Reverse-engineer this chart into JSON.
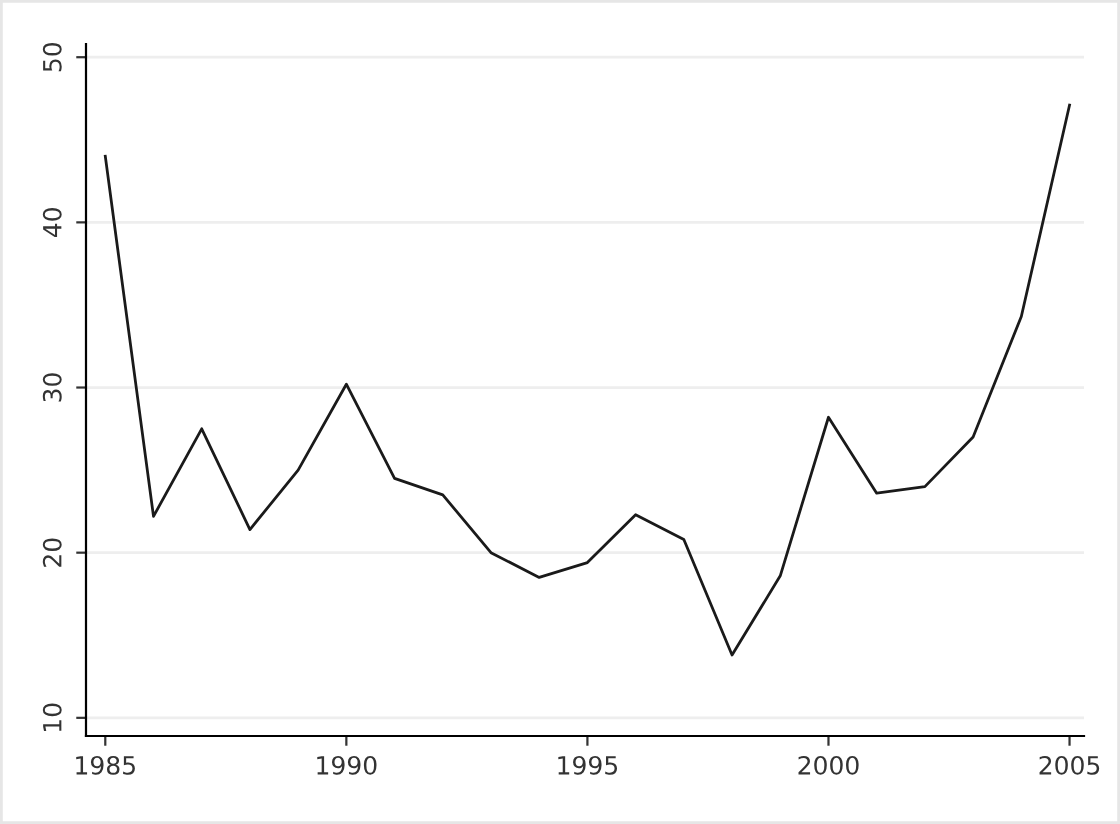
{
  "chart_data": {
    "type": "line",
    "x": [
      1985,
      1986,
      1987,
      1988,
      1989,
      1990,
      1991,
      1992,
      1993,
      1994,
      1995,
      1996,
      1997,
      1998,
      1999,
      2000,
      2001,
      2002,
      2003,
      2004,
      2005
    ],
    "series": [
      {
        "color": "#1a1a1a",
        "values": [
          44.0,
          22.2,
          27.5,
          21.4,
          25.0,
          30.2,
          24.5,
          23.5,
          20.0,
          18.5,
          19.4,
          22.3,
          20.8,
          13.8,
          18.6,
          28.2,
          23.6,
          24.0,
          27.0,
          34.3,
          47.1
        ]
      }
    ],
    "xlim": [
      1984.6,
      2005.3
    ],
    "ylim": [
      8.9,
      50.8
    ],
    "xticks": [
      1985,
      1990,
      1995,
      2000,
      2005
    ],
    "yticks": [
      10,
      20,
      30,
      40,
      50
    ],
    "grid": "y",
    "legend": false,
    "marker": "none",
    "line_style": "solid"
  }
}
